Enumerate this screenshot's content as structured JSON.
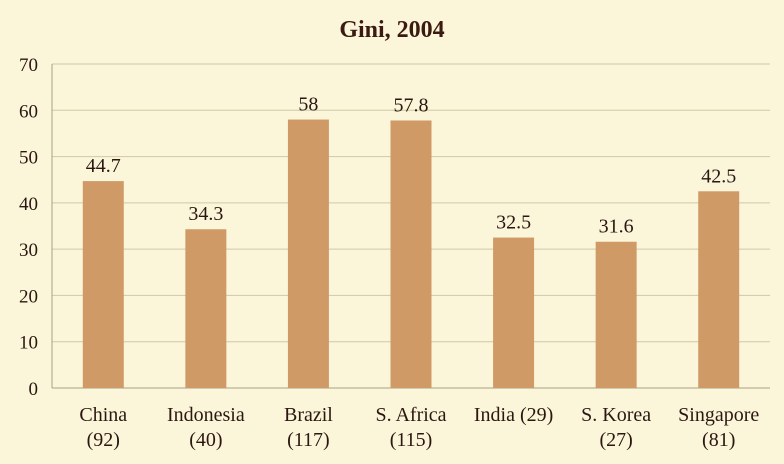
{
  "chart_data": {
    "type": "bar",
    "title": "Gini, 2004",
    "xlabel": "",
    "ylabel": "",
    "categories": [
      [
        "China",
        "(92)"
      ],
      [
        "Indonesia",
        "(40)"
      ],
      [
        "Brazil",
        "(117)"
      ],
      [
        "S. Africa",
        "(115)"
      ],
      [
        "India (29)"
      ],
      [
        "S. Korea",
        "(27)"
      ],
      [
        "Singapore",
        "(81)"
      ]
    ],
    "values": [
      44.7,
      34.3,
      58,
      57.8,
      32.5,
      31.6,
      42.5
    ],
    "data_labels": [
      "44.7",
      "34.3",
      "58",
      "57.8",
      "32.5",
      "31.6",
      "42.5"
    ],
    "ylim": [
      0,
      70
    ],
    "yticks": [
      0,
      10,
      20,
      30,
      40,
      50,
      60,
      70
    ],
    "grid": true,
    "legend": "none",
    "colors": {
      "bar": "#D09A67",
      "background": "#FBF6DA",
      "grid": "#CFC8A6",
      "text": "#2B1710"
    }
  }
}
